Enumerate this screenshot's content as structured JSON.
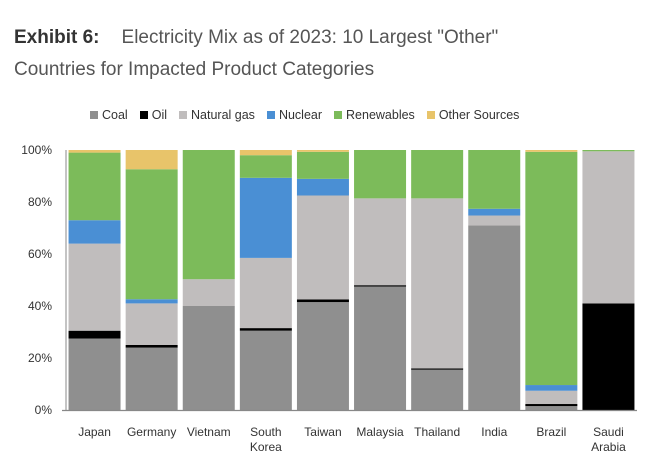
{
  "header": {
    "exhibit": "Exhibit 6:",
    "title_line1": "Electricity Mix as of 2023: 10 Largest \"Other\"",
    "title_line2": "Countries for Impacted Product Categories"
  },
  "chart_data": {
    "type": "bar",
    "stacked": true,
    "title": "Electricity Mix as of 2023: 10 Largest \"Other\" Countries for Impacted Product Categories",
    "xlabel": "",
    "ylabel": "",
    "ylim": [
      0,
      100
    ],
    "yticks": [
      "0%",
      "20%",
      "40%",
      "60%",
      "80%",
      "100%"
    ],
    "grid": false,
    "legend_position": "top",
    "categories": [
      "Japan",
      "Germany",
      "Vietnam",
      "South Korea",
      "Taiwan",
      "Malaysia",
      "Thailand",
      "India",
      "Brazil",
      "Saudi Arabia"
    ],
    "category_lines": [
      [
        "Japan"
      ],
      [
        "Germany"
      ],
      [
        "Vietnam"
      ],
      [
        "South",
        "Korea"
      ],
      [
        "Taiwan"
      ],
      [
        "Malaysia"
      ],
      [
        "Thailand"
      ],
      [
        "India"
      ],
      [
        "Brazil"
      ],
      [
        "Saudi",
        "Arabia"
      ]
    ],
    "series": [
      {
        "name": "Coal",
        "color": "#8f8f8f",
        "values": [
          27.5,
          24,
          40,
          30.5,
          41.5,
          47.5,
          15.5,
          71,
          1.5,
          0
        ]
      },
      {
        "name": "Oil",
        "color": "#000000",
        "values": [
          3,
          1,
          0,
          1,
          1,
          0.5,
          0.5,
          0,
          0.8,
          41
        ]
      },
      {
        "name": "Natural gas",
        "color": "#c0bdbd",
        "values": [
          33.5,
          16,
          10.3,
          27,
          40,
          33.4,
          65.4,
          3.8,
          5.1,
          58.5
        ]
      },
      {
        "name": "Nuclear",
        "color": "#4a8fd4",
        "values": [
          9,
          1.6,
          0,
          30.8,
          6.4,
          0,
          0,
          2.6,
          2.2,
          0
        ]
      },
      {
        "name": "Renewables",
        "color": "#7cbb5a",
        "values": [
          26,
          50,
          49.7,
          8.7,
          10.4,
          18.6,
          18.6,
          22.6,
          89.7,
          0.5
        ]
      },
      {
        "name": "Other Sources",
        "color": "#e8c46a",
        "values": [
          1,
          7.4,
          0,
          2,
          0.7,
          0,
          0,
          0,
          0.7,
          0
        ]
      }
    ]
  }
}
